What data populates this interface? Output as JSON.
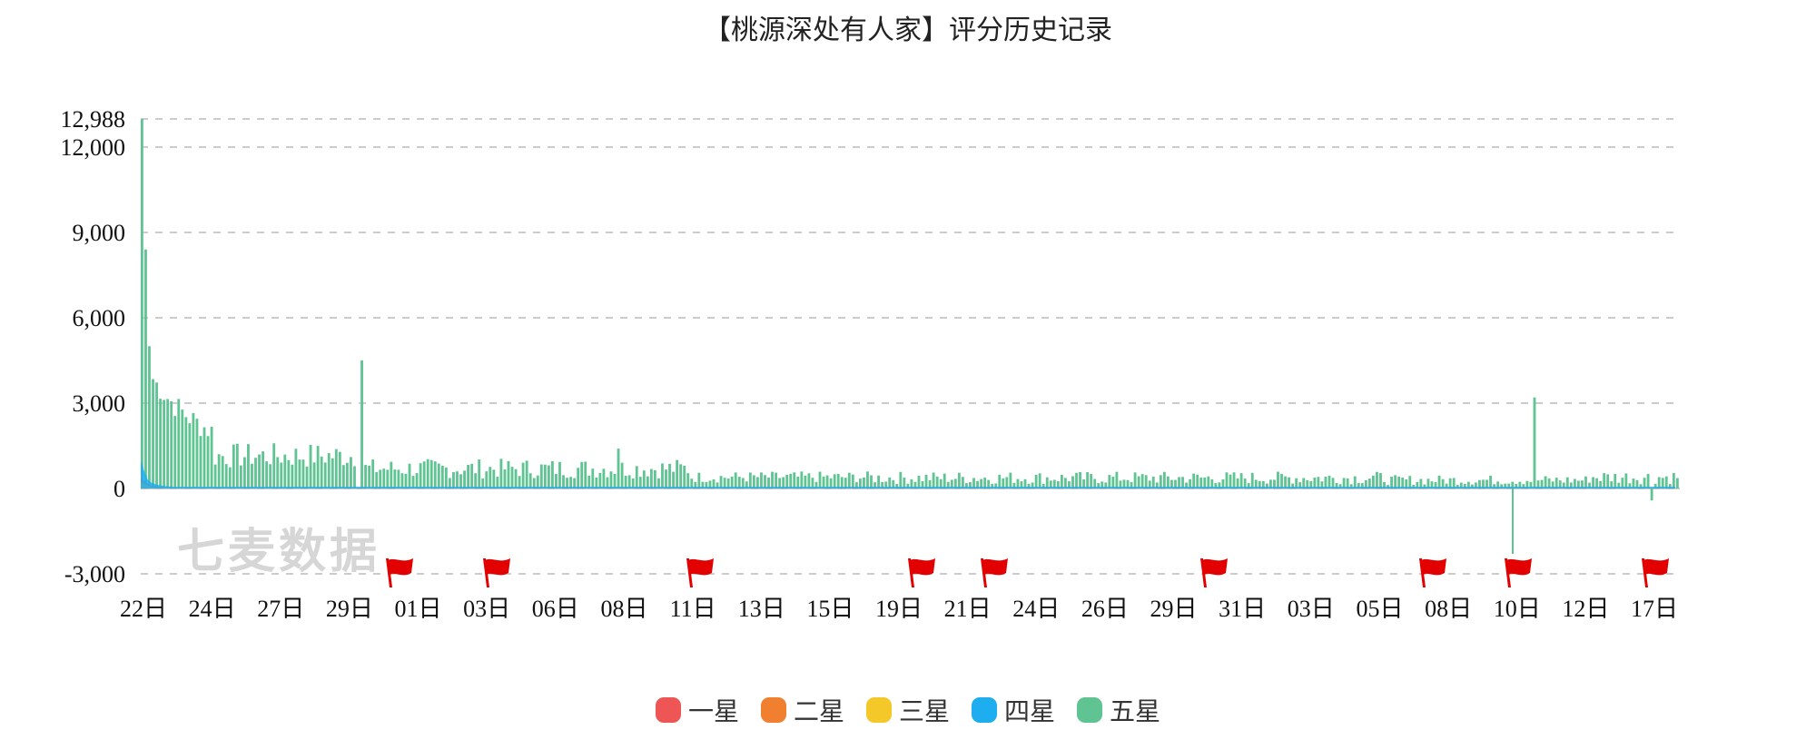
{
  "chart_data": {
    "type": "area",
    "title": "【桃源深处有人家】评分历史记录",
    "xlabel": "",
    "ylabel": "",
    "ylim": [
      -3000,
      12988
    ],
    "y_ticks": [
      "-3,000",
      "0",
      "3,000",
      "6,000",
      "9,000",
      "12,000",
      "12,988"
    ],
    "y_tick_values": [
      -3000,
      0,
      3000,
      6000,
      9000,
      12000,
      12988
    ],
    "x_tick_labels": [
      "22日",
      "24日",
      "27日",
      "29日",
      "01日",
      "03日",
      "06日",
      "08日",
      "11日",
      "13日",
      "15日",
      "19日",
      "21日",
      "24日",
      "26日",
      "29日",
      "31日",
      "03日",
      "05日",
      "08日",
      "10日",
      "12日",
      "17日"
    ],
    "grid": true,
    "legend_position": "bottom",
    "series": [
      {
        "name": "一星",
        "color": "#ee5555",
        "values": [
          400,
          250,
          150,
          100,
          80,
          60,
          50,
          40,
          40,
          30
        ]
      },
      {
        "name": "二星",
        "color": "#f08030",
        "values": [
          300,
          200,
          120,
          80,
          60,
          50,
          40,
          30,
          30,
          20
        ]
      },
      {
        "name": "三星",
        "color": "#f5c829",
        "values": [
          200,
          150,
          100,
          60,
          40,
          30,
          30,
          20,
          20,
          15
        ]
      },
      {
        "name": "四星",
        "color": "#1eaef0",
        "values": [
          1000,
          600,
          300,
          200,
          150,
          120,
          100,
          80,
          70,
          60
        ]
      },
      {
        "name": "五星",
        "color": "#5fc392",
        "values": [
          12988,
          8400,
          5000,
          3000,
          2600,
          2300,
          1800,
          1500,
          1200,
          1000,
          4500,
          800,
          700,
          1800,
          600,
          500,
          1300,
          400,
          1350,
          300,
          250,
          200,
          600,
          900,
          500,
          400,
          350,
          300,
          250,
          3200,
          -420,
          300,
          1100,
          700
        ]
      }
    ],
    "flags": [
      "01日",
      "03日",
      "11日",
      "19日",
      "21日",
      "29日",
      "05日",
      "08日",
      "12日"
    ]
  },
  "watermark": "七麦数据"
}
